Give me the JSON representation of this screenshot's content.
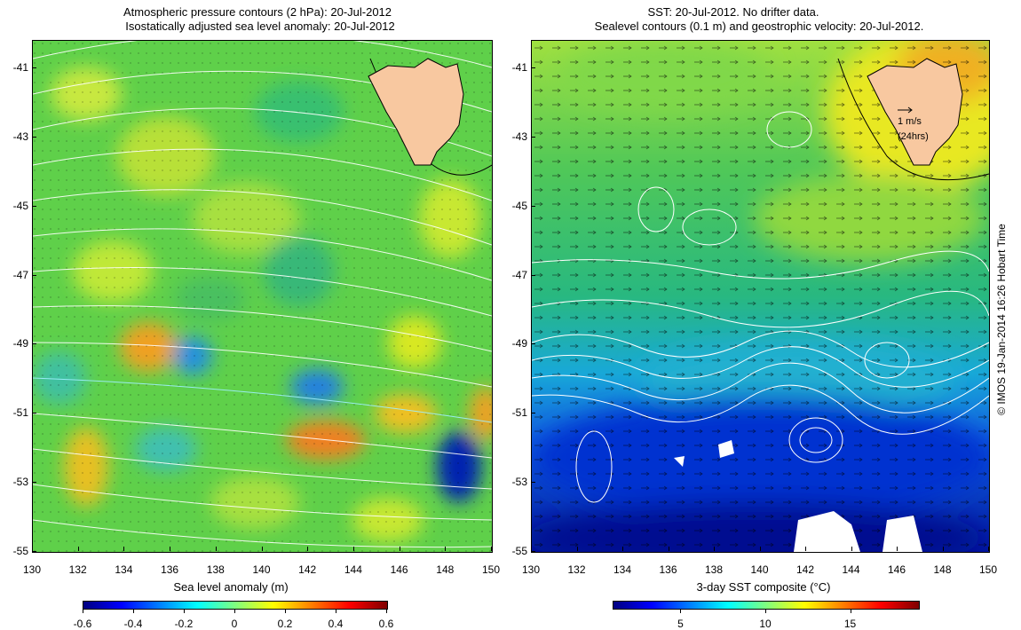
{
  "left_panel": {
    "title_line1": "Atmospheric pressure contours (2 hPa): 20-Jul-2012",
    "title_line2": "Isostatically adjusted sea level anomaly: 20-Jul-2012",
    "axis_title": "Sea level anomaly (m)",
    "colorbar_ticks": [
      "-0.6",
      "-0.4",
      "-0.2",
      "0",
      "0.2",
      "0.4",
      "0.6"
    ],
    "colorbar_range": [
      -0.6,
      0.6
    ]
  },
  "right_panel": {
    "title_line1": "SST: 20-Jul-2012. No drifter data.",
    "title_line2": "Sealevel contours (0.1 m) and geostrophic velocity: 20-Jul-2012.",
    "axis_title": "3-day SST composite (°C)",
    "colorbar_ticks": [
      "5",
      "10",
      "15"
    ],
    "colorbar_range": [
      1,
      19
    ],
    "velocity_legend_line1": "1 m/s",
    "velocity_legend_line2": "(24hrs)"
  },
  "axes": {
    "lon_ticks": [
      "130",
      "132",
      "134",
      "136",
      "138",
      "140",
      "142",
      "144",
      "146",
      "148",
      "150"
    ],
    "lat_ticks": [
      "-41",
      "-43",
      "-45",
      "-47",
      "-49",
      "-51",
      "-53",
      "-55"
    ],
    "lon_range": [
      130,
      150
    ],
    "lat_range": [
      -55,
      -40.2
    ]
  },
  "credit": "© IMOS 19-Jan-2014 16:26 Hobart Time",
  "colors": {
    "land": "#f8c8a0",
    "contour": "#ffffff",
    "colormap": [
      "#00007f",
      "#0000ff",
      "#007fff",
      "#00ffff",
      "#7fff7f",
      "#ffff00",
      "#ff7f00",
      "#ff0000",
      "#7f0000"
    ]
  }
}
